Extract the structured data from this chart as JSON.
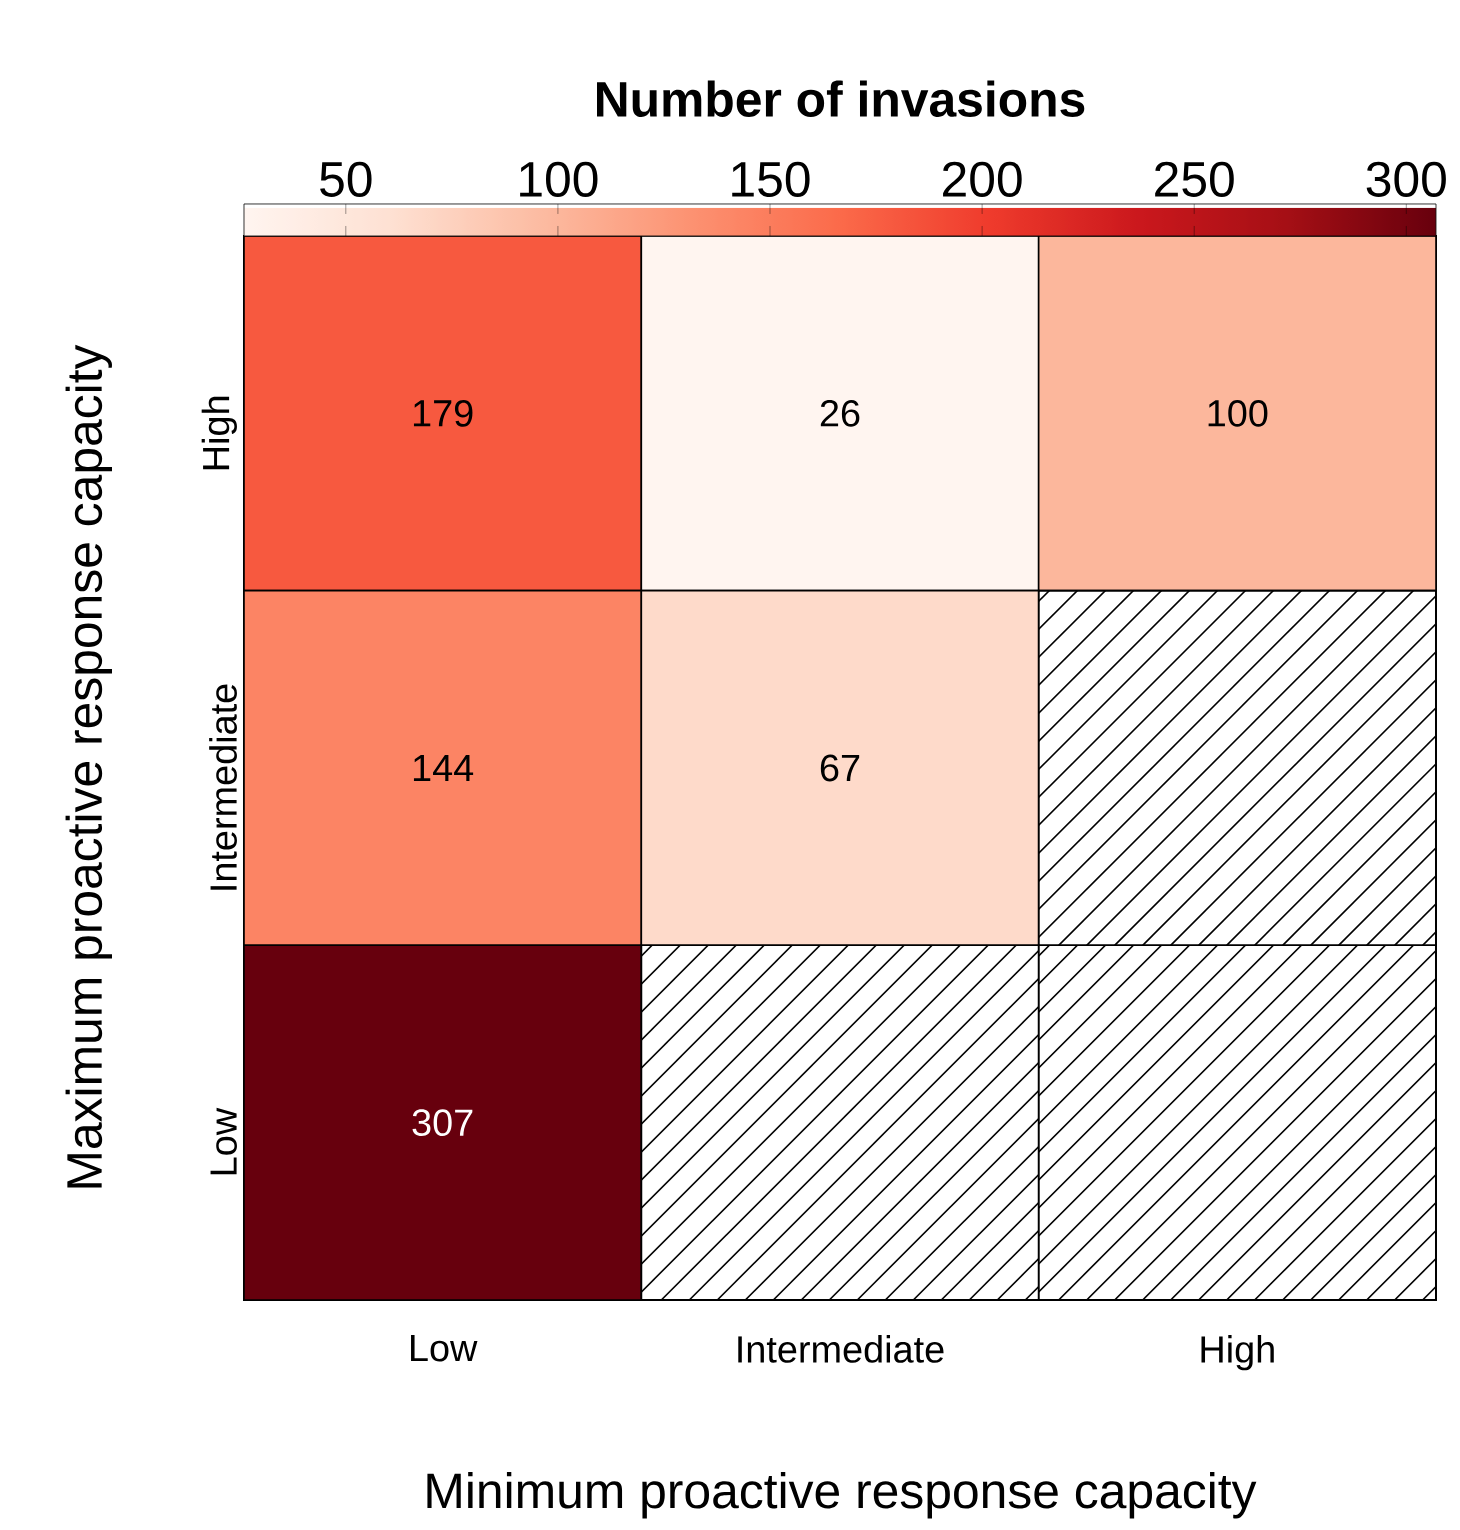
{
  "chart_data": {
    "type": "heatmap",
    "clabel": "Number of invasions",
    "xlabel": "Minimum proactive response capacity",
    "ylabel": "Maximum proactive response capacity",
    "categories": [
      "Low",
      "Intermediate",
      "High"
    ],
    "y_categories": [
      "High",
      "Intermediate",
      "Low"
    ],
    "cells": [
      [
        179,
        26,
        100
      ],
      [
        144,
        67,
        null
      ],
      [
        307,
        null,
        null
      ]
    ],
    "clim": [
      26,
      307
    ],
    "cticks": [
      50,
      100,
      150,
      200,
      250,
      300
    ],
    "data_labels": true
  }
}
